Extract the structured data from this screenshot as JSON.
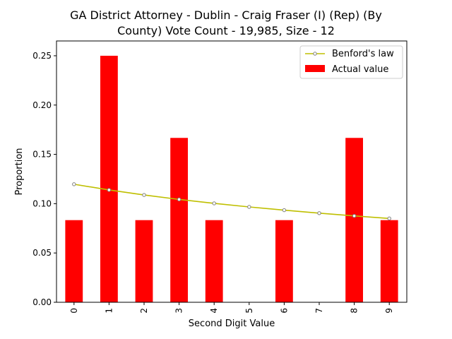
{
  "chart_data": {
    "type": "bar",
    "title": "GA District Attorney - Dublin - Craig Fraser (I) (Rep) (By County) Vote Count - 19,985, Size - 12",
    "title_lines": [
      "GA District Attorney - Dublin - Craig Fraser (I) (Rep) (By",
      "County) Vote Count - 19,985, Size - 12"
    ],
    "xlabel": "Second Digit Value",
    "ylabel": "Proportion",
    "categories": [
      "0",
      "1",
      "2",
      "3",
      "4",
      "5",
      "6",
      "7",
      "8",
      "9"
    ],
    "ylim": [
      0,
      0.265
    ],
    "yticks": [
      "0.00",
      "0.05",
      "0.10",
      "0.15",
      "0.20",
      "0.25"
    ],
    "ytick_values": [
      0,
      0.05,
      0.1,
      0.15,
      0.2,
      0.25
    ],
    "series": [
      {
        "name": "Actual value",
        "kind": "bar",
        "color": "#ff0000",
        "values": [
          0.0833,
          0.25,
          0.0833,
          0.1667,
          0.0833,
          0.0,
          0.0833,
          0.0,
          0.1667,
          0.0833
        ]
      },
      {
        "name": "Benford's law",
        "kind": "line",
        "color": "#bfbf00",
        "values": [
          0.1197,
          0.1139,
          0.1088,
          0.1043,
          0.1003,
          0.0967,
          0.0934,
          0.0904,
          0.0876,
          0.085
        ]
      }
    ],
    "legend_position": "top-right",
    "grid": false
  }
}
